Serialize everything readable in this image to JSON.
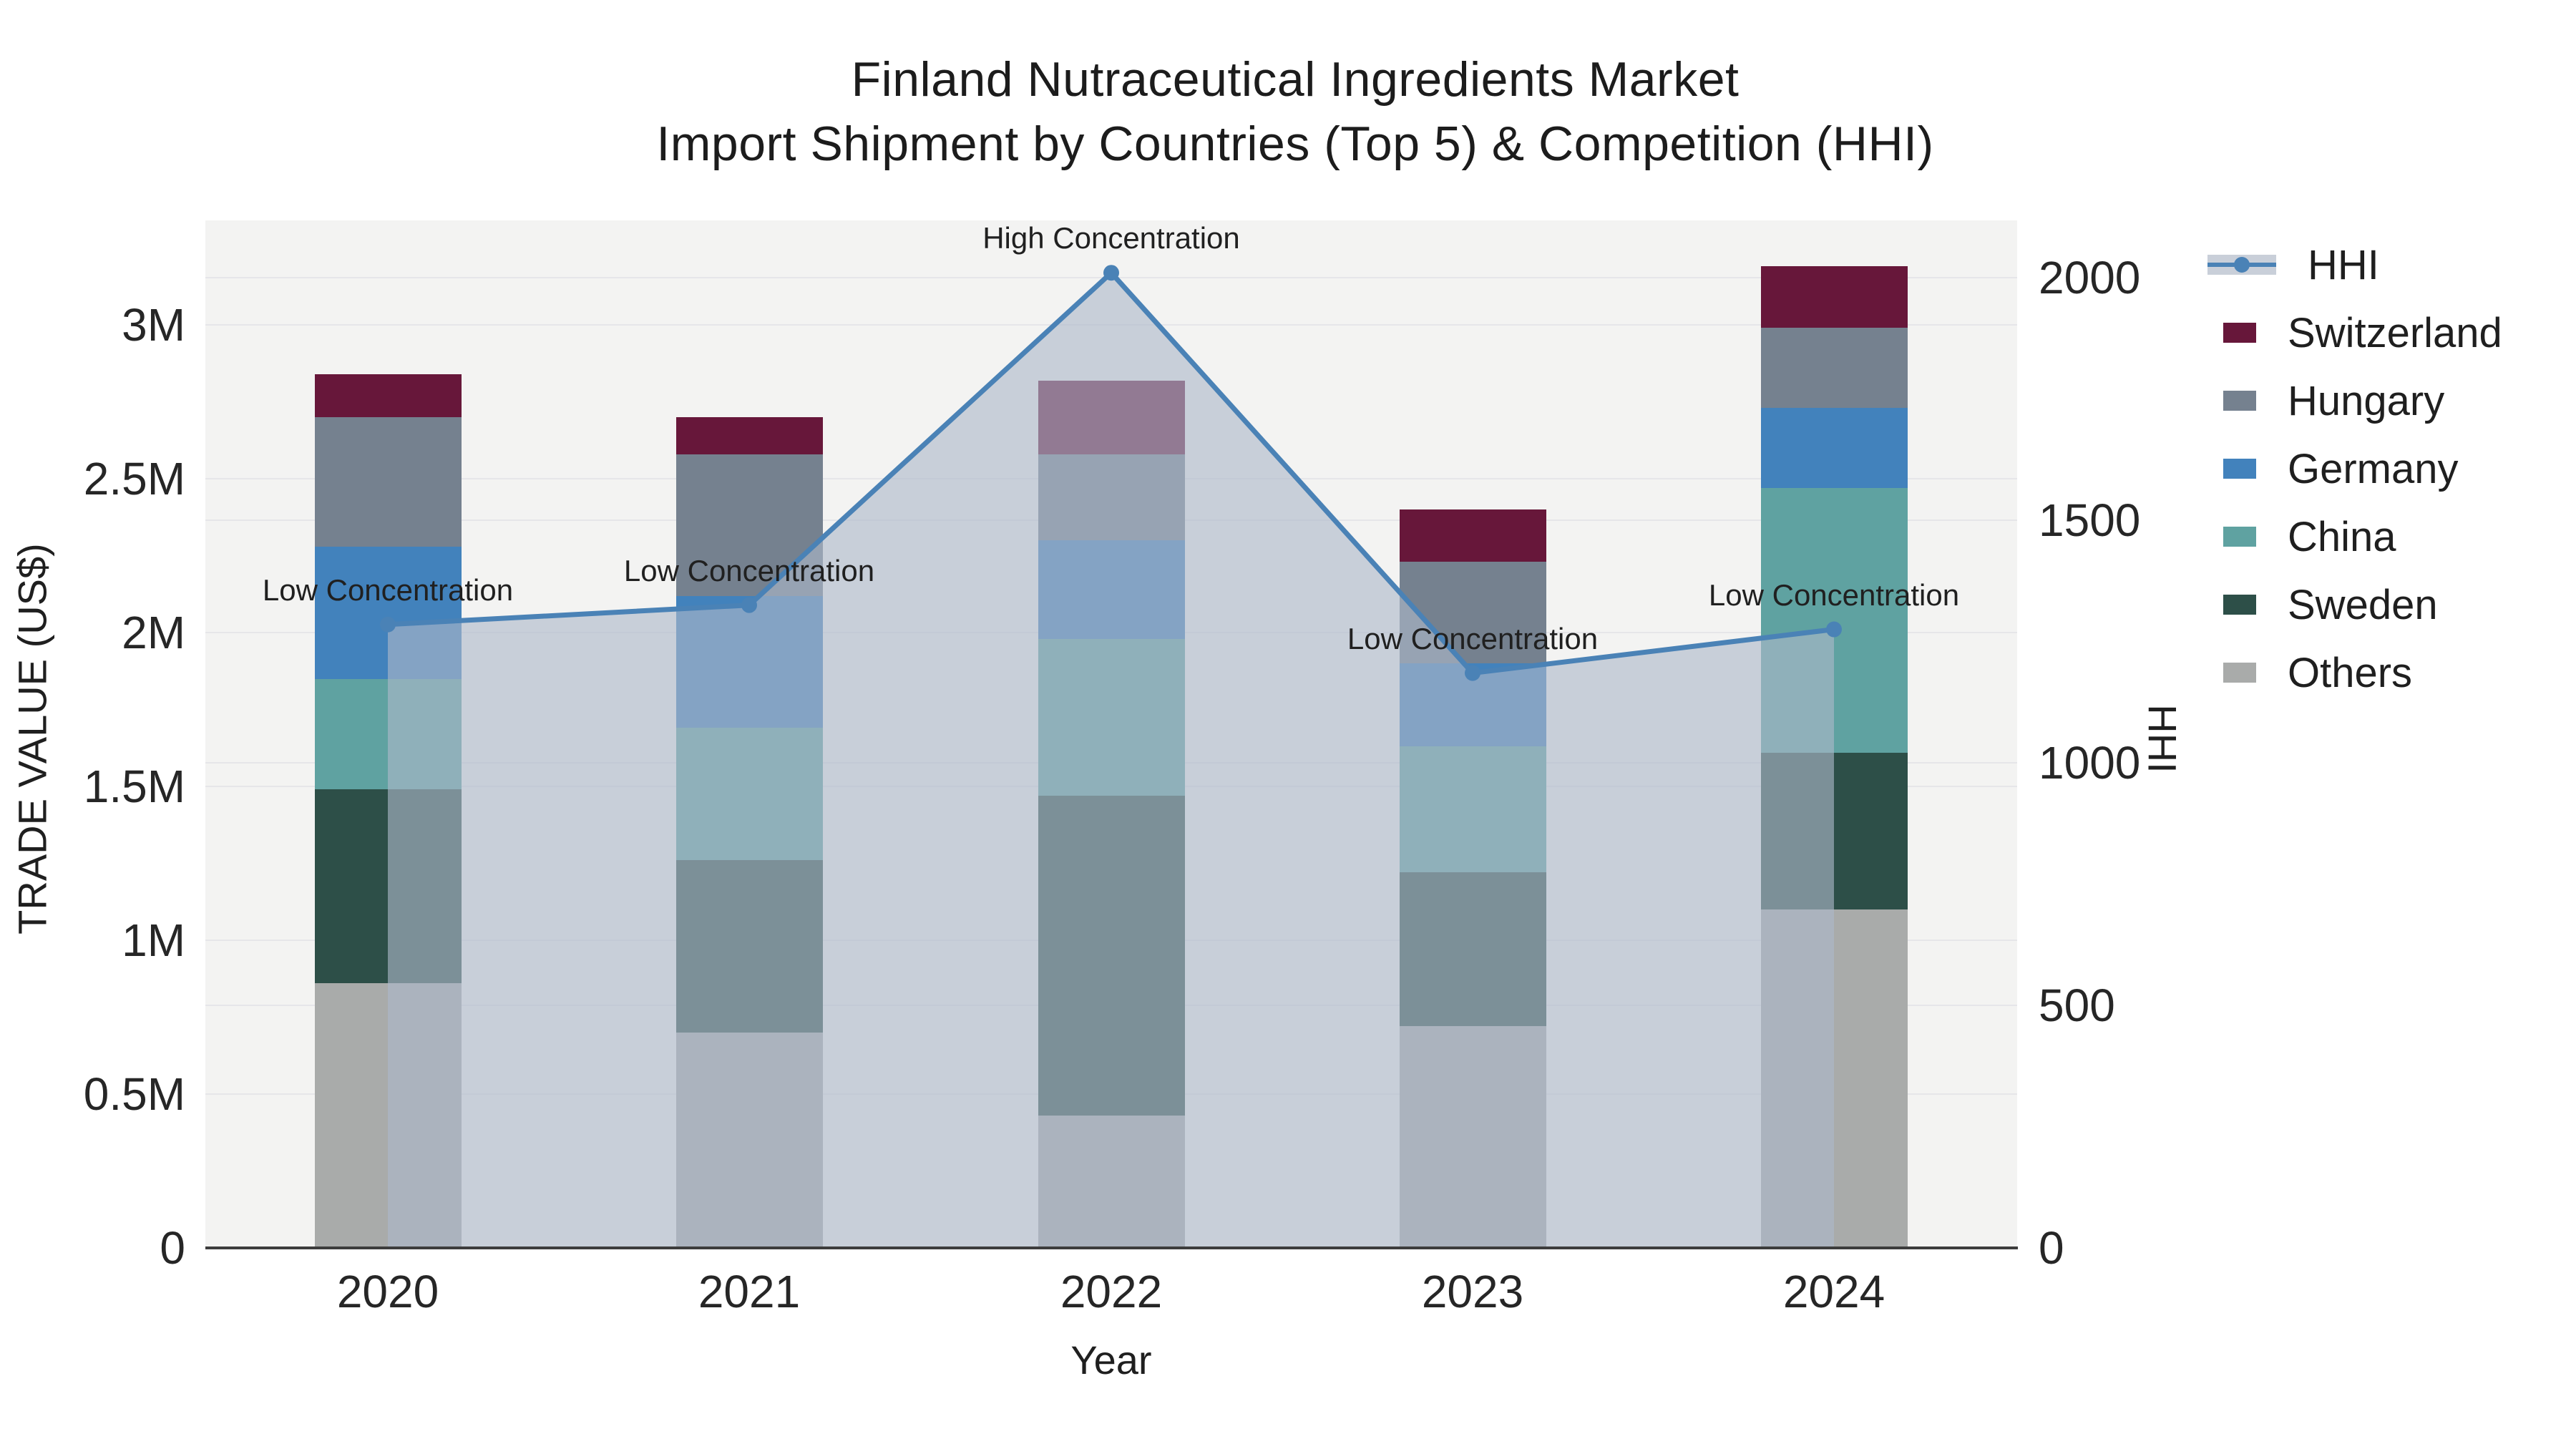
{
  "title": {
    "line1": "Finland Nutraceutical Ingredients Market",
    "line2": "Import Shipment by Countries (Top 5) & Competition (HHI)"
  },
  "chart_data": {
    "type": "combo",
    "bar_mode": "stacked",
    "categories": [
      "2020",
      "2021",
      "2022",
      "2023",
      "2024"
    ],
    "values_unit": "million US$",
    "bar_series": [
      {
        "name": "Others",
        "color": "#a9abaa",
        "values": [
          0.86,
          0.7,
          0.43,
          0.72,
          1.1
        ]
      },
      {
        "name": "Sweden",
        "color": "#2d4f48",
        "values": [
          0.63,
          0.56,
          1.04,
          0.5,
          0.51
        ]
      },
      {
        "name": "China",
        "color": "#5fa2a1",
        "values": [
          0.36,
          0.43,
          0.51,
          0.41,
          0.86
        ]
      },
      {
        "name": "Germany",
        "color": "#4282bc",
        "values": [
          0.43,
          0.43,
          0.32,
          0.27,
          0.26
        ]
      },
      {
        "name": "Hungary",
        "color": "#75818f",
        "values": [
          0.42,
          0.46,
          0.28,
          0.33,
          0.26
        ]
      },
      {
        "name": "Switzerland",
        "color": "#67173a",
        "values": [
          0.14,
          0.12,
          0.24,
          0.17,
          0.2
        ]
      }
    ],
    "line_series": {
      "name": "HHI",
      "color": "#4a82b6",
      "area_fill": "rgba(173,184,201,0.62)",
      "values": [
        1285,
        1325,
        2010,
        1185,
        1275
      ]
    },
    "annotations": [
      {
        "category": "2020",
        "text": "Low Concentration"
      },
      {
        "category": "2021",
        "text": "Low Concentration"
      },
      {
        "category": "2022",
        "text": "High Concentration"
      },
      {
        "category": "2023",
        "text": "Low Concentration"
      },
      {
        "category": "2024",
        "text": "Low Concentration"
      }
    ],
    "y_left": {
      "title": "TRADE VALUE (US$)",
      "tick_labels": [
        "0",
        "0.5M",
        "1M",
        "1.5M",
        "2M",
        "2.5M",
        "3M"
      ],
      "tick_values": [
        0,
        0.5,
        1,
        1.5,
        2,
        2.5,
        3
      ],
      "range": [
        0,
        3.34
      ],
      "grid": true
    },
    "y_right": {
      "title": "HHI",
      "tick_labels": [
        "0",
        "500",
        "1000",
        "1500",
        "2000"
      ],
      "tick_values": [
        0,
        500,
        1000,
        1500,
        2000
      ],
      "range": [
        0,
        2118
      ],
      "grid": true
    },
    "x": {
      "title": "Year"
    },
    "legend": {
      "position": "top-right-outside",
      "entries": [
        {
          "label": "HHI",
          "type": "line",
          "color": "#4a82b6",
          "band": "#c9cfd9"
        },
        {
          "label": "Switzerland",
          "type": "fill",
          "color": "#67173a"
        },
        {
          "label": "Hungary",
          "type": "fill",
          "color": "#75818f"
        },
        {
          "label": "Germany",
          "type": "fill",
          "color": "#4282bc"
        },
        {
          "label": "China",
          "type": "fill",
          "color": "#5fa2a1"
        },
        {
          "label": "Sweden",
          "type": "fill",
          "color": "#2d4f48"
        },
        {
          "label": "Others",
          "type": "fill",
          "color": "#a9abaa"
        }
      ]
    },
    "plot_bg": "#f3f3f2",
    "grid_color": "#e6e6e9"
  }
}
